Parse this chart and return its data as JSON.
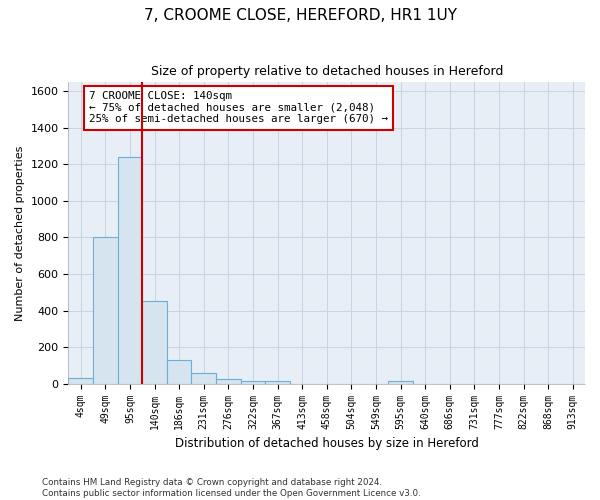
{
  "title": "7, CROOME CLOSE, HEREFORD, HR1 1UY",
  "subtitle": "Size of property relative to detached houses in Hereford",
  "xlabel": "Distribution of detached houses by size in Hereford",
  "ylabel": "Number of detached properties",
  "bin_labels": [
    "4sqm",
    "49sqm",
    "95sqm",
    "140sqm",
    "186sqm",
    "231sqm",
    "276sqm",
    "322sqm",
    "367sqm",
    "413sqm",
    "458sqm",
    "504sqm",
    "549sqm",
    "595sqm",
    "640sqm",
    "686sqm",
    "731sqm",
    "777sqm",
    "822sqm",
    "868sqm",
    "913sqm"
  ],
  "bar_heights": [
    30,
    800,
    1240,
    450,
    130,
    60,
    25,
    15,
    12,
    0,
    0,
    0,
    0,
    15,
    0,
    0,
    0,
    0,
    0,
    0,
    0
  ],
  "bar_color": "#d6e4f0",
  "bar_edge_color": "#6baed6",
  "vline_color": "#cc0000",
  "annotation_text": "7 CROOME CLOSE: 140sqm\n← 75% of detached houses are smaller (2,048)\n25% of semi-detached houses are larger (670) →",
  "annotation_box_color": "white",
  "annotation_box_edge": "#cc0000",
  "ylim": [
    0,
    1650
  ],
  "yticks": [
    0,
    200,
    400,
    600,
    800,
    1000,
    1200,
    1400,
    1600
  ],
  "footer": "Contains HM Land Registry data © Crown copyright and database right 2024.\nContains public sector information licensed under the Open Government Licence v3.0.",
  "grid_color": "#c8d4e0",
  "background_color": "#e8eef5"
}
